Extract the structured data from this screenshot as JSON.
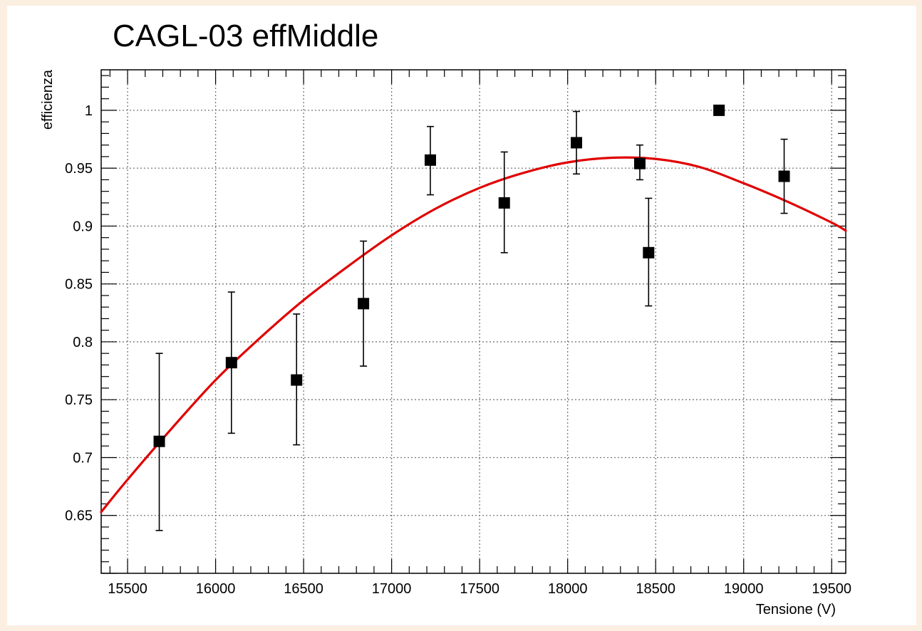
{
  "chart_data": {
    "type": "scatter",
    "title": "CAGL-03 effMiddle",
    "xlabel": "Tensione (V)",
    "ylabel": "efficienza",
    "xlim": [
      15350,
      19580
    ],
    "ylim": [
      0.6,
      1.035
    ],
    "xticks": [
      15500,
      16000,
      16500,
      17000,
      17500,
      18000,
      18500,
      19000,
      19500
    ],
    "yticks": [
      0.65,
      0.7,
      0.75,
      0.8,
      0.85,
      0.9,
      0.95,
      1
    ],
    "ytick_labels": [
      "0.65",
      "0.7",
      "0.75",
      "0.8",
      "0.85",
      "0.9",
      "0.95",
      "1"
    ],
    "grid": true,
    "series": [
      {
        "type": "points-with-errors",
        "color": "#000000",
        "points": [
          {
            "x": 15680,
            "y": 0.714,
            "err_low": 0.077,
            "err_high": 0.076
          },
          {
            "x": 16090,
            "y": 0.782,
            "err_low": 0.061,
            "err_high": 0.061
          },
          {
            "x": 16460,
            "y": 0.767,
            "err_low": 0.056,
            "err_high": 0.057
          },
          {
            "x": 16840,
            "y": 0.833,
            "err_low": 0.054,
            "err_high": 0.054
          },
          {
            "x": 17220,
            "y": 0.957,
            "err_low": 0.03,
            "err_high": 0.029
          },
          {
            "x": 17640,
            "y": 0.92,
            "err_low": 0.043,
            "err_high": 0.044
          },
          {
            "x": 18050,
            "y": 0.972,
            "err_low": 0.027,
            "err_high": 0.027
          },
          {
            "x": 18410,
            "y": 0.954,
            "err_low": 0.014,
            "err_high": 0.016
          },
          {
            "x": 18460,
            "y": 0.877,
            "err_low": 0.046,
            "err_high": 0.047
          },
          {
            "x": 18860,
            "y": 1.0,
            "err_low": 0.0,
            "err_high": 0.0
          },
          {
            "x": 19230,
            "y": 0.943,
            "err_low": 0.032,
            "err_high": 0.032
          }
        ]
      },
      {
        "type": "fit-curve",
        "color": "#e00000",
        "x": [
          15350,
          15500,
          15750,
          16000,
          16250,
          16500,
          16750,
          17000,
          17250,
          17500,
          17750,
          18000,
          18250,
          18500,
          18750,
          19000,
          19250,
          19500,
          19580
        ],
        "y": [
          0.653,
          0.681,
          0.725,
          0.767,
          0.803,
          0.836,
          0.865,
          0.892,
          0.915,
          0.933,
          0.946,
          0.955,
          0.959,
          0.958,
          0.951,
          0.937,
          0.921,
          0.903,
          0.896
        ]
      }
    ]
  }
}
